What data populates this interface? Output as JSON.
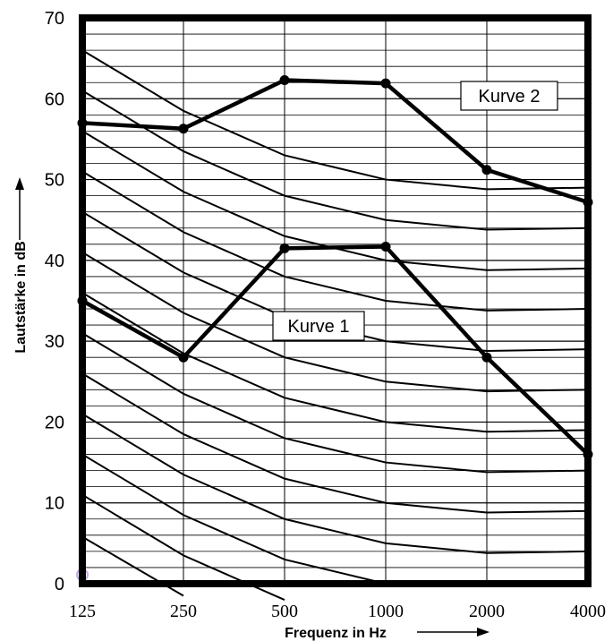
{
  "chart_data": {
    "type": "line",
    "xlabel": "Frequenz in Hz",
    "ylabel": "Lautstärke in dB",
    "x_categories": [
      "125",
      "250",
      "500",
      "1000",
      "2000",
      "4000"
    ],
    "ylim": [
      0,
      70
    ],
    "y_ticks": [
      "0",
      "10",
      "20",
      "30",
      "40",
      "50",
      "60",
      "70"
    ],
    "minor_grid_step": 2,
    "grid": true,
    "series": [
      {
        "name": "Kurve 1",
        "values": [
          35,
          28,
          41.5,
          41.7,
          28,
          16
        ]
      },
      {
        "name": "Kurve 2",
        "values": [
          57,
          56.3,
          62.3,
          61.9,
          51.2,
          47.2
        ]
      }
    ],
    "reference_curves": [
      [
        66,
        58.5,
        53,
        50,
        48.8,
        49
      ],
      [
        61,
        53.5,
        48,
        45,
        43.8,
        44
      ],
      [
        56,
        48.5,
        43,
        40,
        38.8,
        39
      ],
      [
        51,
        43.5,
        38,
        35,
        33.8,
        34
      ],
      [
        46,
        38.5,
        33,
        30,
        28.8,
        29
      ],
      [
        41,
        33.5,
        28,
        25,
        23.8,
        24
      ],
      [
        36,
        28.5,
        23,
        20,
        18.8,
        19
      ],
      [
        31,
        23.5,
        18,
        15,
        13.8,
        14
      ],
      [
        26,
        18.5,
        13,
        10,
        8.8,
        9
      ],
      [
        21,
        13.5,
        8,
        5,
        3.8,
        4
      ],
      [
        16,
        8.5,
        3,
        0
      ],
      [
        11,
        3.5,
        -2
      ],
      [
        5.8,
        -1.5
      ]
    ]
  }
}
